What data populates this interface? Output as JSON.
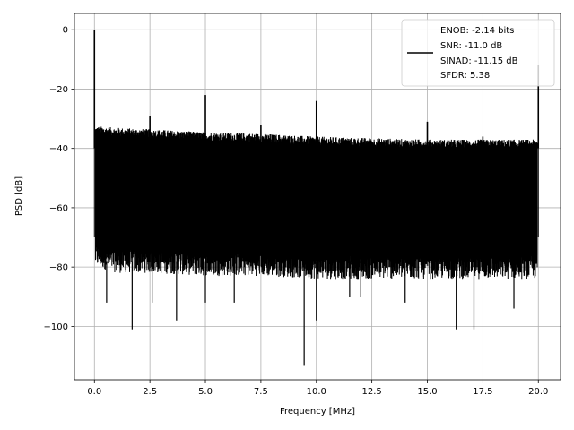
{
  "chart_data": {
    "type": "line",
    "xlabel": "Frequency [MHz]",
    "ylabel": "PSD [dB]",
    "xlim": [
      -0.9,
      21.0
    ],
    "ylim": [
      -118,
      5.5
    ],
    "xticks": [
      0.0,
      2.5,
      5.0,
      7.5,
      10.0,
      12.5,
      15.0,
      17.5,
      20.0
    ],
    "xtick_labels": [
      "0.0",
      "2.5",
      "5.0",
      "7.5",
      "10.0",
      "12.5",
      "15.0",
      "17.5",
      "20.0"
    ],
    "yticks": [
      0,
      -20,
      -40,
      -60,
      -80,
      -100
    ],
    "ytick_labels": [
      "0",
      "−20",
      "−40",
      "−60",
      "−80",
      "−100"
    ],
    "grid": true,
    "legend_position": "top-right",
    "line_color": "#000000",
    "legend_lines": [
      "ENOB: -2.14 bits",
      "SNR: -11.0 dB",
      "SINAD: -11.15 dB",
      "SFDR: 5.38"
    ],
    "series": [
      {
        "noise_envelope": {
          "x": [
            0.1,
            1.0,
            2.5,
            5.0,
            7.5,
            10.0,
            12.5,
            15.0,
            17.5,
            19.9
          ],
          "upper_db": [
            -34,
            -34.5,
            -35,
            -36,
            -36.5,
            -37.5,
            -38,
            -38.5,
            -38.5,
            -38.5
          ],
          "lower_db": [
            -80,
            -82,
            -82,
            -83,
            -83,
            -84,
            -84,
            -84,
            -84,
            -84
          ]
        },
        "spurs": [
          {
            "x": 0.0,
            "y": 0.0
          },
          {
            "x": 2.5,
            "y": -29
          },
          {
            "x": 5.0,
            "y": -22
          },
          {
            "x": 7.5,
            "y": -32
          },
          {
            "x": 10.0,
            "y": -24
          },
          {
            "x": 15.0,
            "y": -31
          },
          {
            "x": 17.5,
            "y": -36
          },
          {
            "x": 20.0,
            "y": -12
          }
        ],
        "deep_dips": [
          {
            "x": 0.55,
            "y": -92
          },
          {
            "x": 1.7,
            "y": -101
          },
          {
            "x": 2.6,
            "y": -92
          },
          {
            "x": 3.7,
            "y": -98
          },
          {
            "x": 5.0,
            "y": -92
          },
          {
            "x": 6.3,
            "y": -92
          },
          {
            "x": 9.45,
            "y": -113
          },
          {
            "x": 10.0,
            "y": -98
          },
          {
            "x": 11.5,
            "y": -90
          },
          {
            "x": 12.0,
            "y": -90
          },
          {
            "x": 14.0,
            "y": -92
          },
          {
            "x": 16.3,
            "y": -101
          },
          {
            "x": 17.1,
            "y": -101
          },
          {
            "x": 18.9,
            "y": -94
          }
        ]
      }
    ]
  }
}
